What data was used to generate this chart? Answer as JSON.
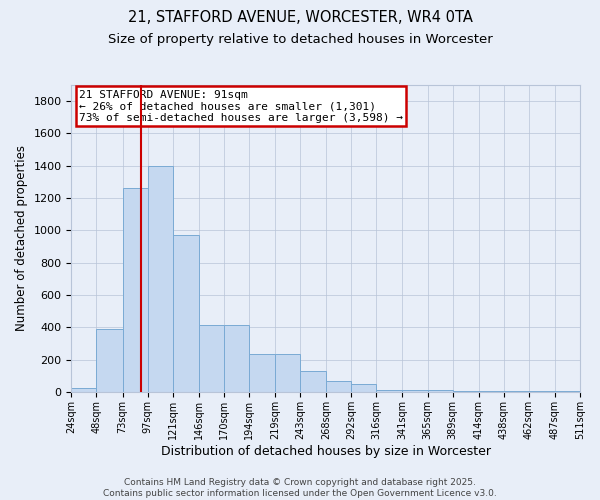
{
  "title": "21, STAFFORD AVENUE, WORCESTER, WR4 0TA",
  "subtitle": "Size of property relative to detached houses in Worcester",
  "xlabel": "Distribution of detached houses by size in Worcester",
  "ylabel": "Number of detached properties",
  "bin_edges": [
    24,
    48,
    73,
    97,
    121,
    146,
    170,
    194,
    219,
    243,
    268,
    292,
    316,
    341,
    365,
    389,
    414,
    438,
    462,
    487,
    511
  ],
  "bar_values": [
    25,
    390,
    1265,
    1400,
    970,
    415,
    415,
    235,
    235,
    130,
    65,
    50,
    15,
    15,
    10,
    5,
    5,
    5,
    5,
    5
  ],
  "bar_color": "#c5d8f0",
  "bar_edge_color": "#7aaad4",
  "bar_linewidth": 0.7,
  "tick_labels": [
    "24sqm",
    "48sqm",
    "73sqm",
    "97sqm",
    "121sqm",
    "146sqm",
    "170sqm",
    "194sqm",
    "219sqm",
    "243sqm",
    "268sqm",
    "292sqm",
    "316sqm",
    "341sqm",
    "365sqm",
    "389sqm",
    "414sqm",
    "438sqm",
    "462sqm",
    "487sqm",
    "511sqm"
  ],
  "ylim": [
    0,
    1900
  ],
  "yticks": [
    0,
    200,
    400,
    600,
    800,
    1000,
    1200,
    1400,
    1600,
    1800
  ],
  "property_size": 91,
  "red_line_color": "#cc0000",
  "annotation_line1": "21 STAFFORD AVENUE: 91sqm",
  "annotation_line2": "← 26% of detached houses are smaller (1,301)",
  "annotation_line3": "73% of semi-detached houses are larger (3,598) →",
  "annotation_box_facecolor": "#ffffff",
  "annotation_box_edge_color": "#cc0000",
  "footer_text": "Contains HM Land Registry data © Crown copyright and database right 2025.\nContains public sector information licensed under the Open Government Licence v3.0.",
  "bg_color": "#e8eef8",
  "grid_color": "#b8c4d8",
  "title_fontsize": 10.5,
  "subtitle_fontsize": 9.5,
  "ylabel_fontsize": 8.5,
  "xlabel_fontsize": 9,
  "tick_fontsize": 7,
  "annotation_fontsize": 8,
  "footer_fontsize": 6.5
}
